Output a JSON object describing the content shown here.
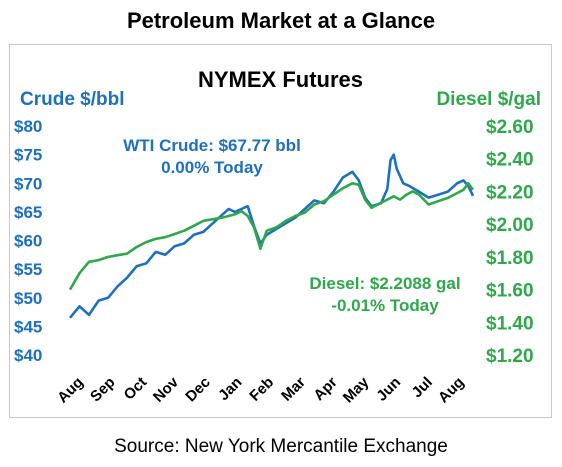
{
  "page_title": "Petroleum Market at a Glance",
  "source": "Source: New York Mercantile Exchange",
  "colors": {
    "crude": "#1f6fbf",
    "diesel": "#2ea84a"
  },
  "chart_data": {
    "type": "line",
    "title": "NYMEX Futures",
    "ylabel_left": "Crude $/bbl",
    "ylabel_right": "Diesel $/gal",
    "ylim_left": [
      40,
      80
    ],
    "ylim_right": [
      1.2,
      2.6
    ],
    "yticks_left": [
      "$80",
      "$75",
      "$70",
      "$65",
      "$60",
      "$55",
      "$50",
      "$45",
      "$40"
    ],
    "yticks_right": [
      "$2.60",
      "$2.40",
      "$2.20",
      "$2.00",
      "$1.80",
      "$1.60",
      "$1.40",
      "$1.20"
    ],
    "x_categories": [
      "Aug",
      "Sep",
      "Oct",
      "Nov",
      "Dec",
      "Jan",
      "Feb",
      "Mar",
      "Apr",
      "May",
      "Jun",
      "Jul",
      "Aug"
    ],
    "legend": "none",
    "annotations": {
      "wti_line1": "WTI Crude: $67.77 bbl",
      "wti_line2": "0.00% Today",
      "diesel_line1": "Diesel: $2.2088 gal",
      "diesel_line2": "-0.01% Today"
    },
    "series": [
      {
        "axis": "left",
        "color": "#1f6fbf",
        "x": [
          0,
          0.3,
          0.6,
          0.9,
          1.2,
          1.5,
          1.8,
          2.1,
          2.4,
          2.7,
          3.0,
          3.3,
          3.6,
          3.9,
          4.2,
          4.5,
          4.8,
          5.0,
          5.2,
          5.4,
          5.6,
          5.8,
          6.0,
          6.2,
          6.5,
          6.8,
          7.1,
          7.4,
          7.7,
          8.0,
          8.3,
          8.6,
          8.9,
          9.1,
          9.3,
          9.5,
          9.8,
          10.0,
          10.1,
          10.2,
          10.3,
          10.5,
          10.7,
          11.0,
          11.3,
          11.6,
          11.9,
          12.2,
          12.4,
          12.55,
          12.7
        ],
        "values": [
          46.5,
          48.5,
          47,
          49.5,
          50,
          52,
          53.5,
          55.5,
          56,
          58,
          57.5,
          59,
          59.5,
          61,
          61.5,
          63,
          64.5,
          65.5,
          65,
          65.5,
          66,
          62.5,
          59.5,
          61,
          62,
          63,
          64,
          65.5,
          67,
          66.5,
          68.5,
          71,
          72,
          70.5,
          67.5,
          66,
          66.5,
          69,
          74,
          75,
          72.5,
          70,
          69.5,
          68.5,
          67.5,
          68,
          68.5,
          70,
          70.5,
          69.5,
          67.8
        ]
      },
      {
        "axis": "right",
        "color": "#2ea84a",
        "x": [
          0,
          0.3,
          0.6,
          0.9,
          1.2,
          1.5,
          1.8,
          2.1,
          2.4,
          2.7,
          3.0,
          3.3,
          3.6,
          3.9,
          4.2,
          4.5,
          4.8,
          5.0,
          5.2,
          5.4,
          5.6,
          5.8,
          6.0,
          6.2,
          6.5,
          6.8,
          7.1,
          7.4,
          7.7,
          8.0,
          8.3,
          8.6,
          8.9,
          9.1,
          9.3,
          9.5,
          9.8,
          10.0,
          10.2,
          10.4,
          10.6,
          10.8,
          11.0,
          11.3,
          11.6,
          11.9,
          12.2,
          12.4,
          12.55,
          12.7
        ],
        "values": [
          1.6,
          1.7,
          1.77,
          1.78,
          1.8,
          1.81,
          1.82,
          1.86,
          1.89,
          1.91,
          1.92,
          1.94,
          1.96,
          1.99,
          2.02,
          2.03,
          2.04,
          2.05,
          2.06,
          2.08,
          2.05,
          1.98,
          1.85,
          1.96,
          1.98,
          2.02,
          2.05,
          2.07,
          2.12,
          2.14,
          2.18,
          2.22,
          2.25,
          2.24,
          2.15,
          2.1,
          2.13,
          2.15,
          2.17,
          2.15,
          2.18,
          2.2,
          2.18,
          2.12,
          2.14,
          2.16,
          2.19,
          2.21,
          2.25,
          2.21
        ]
      }
    ]
  }
}
